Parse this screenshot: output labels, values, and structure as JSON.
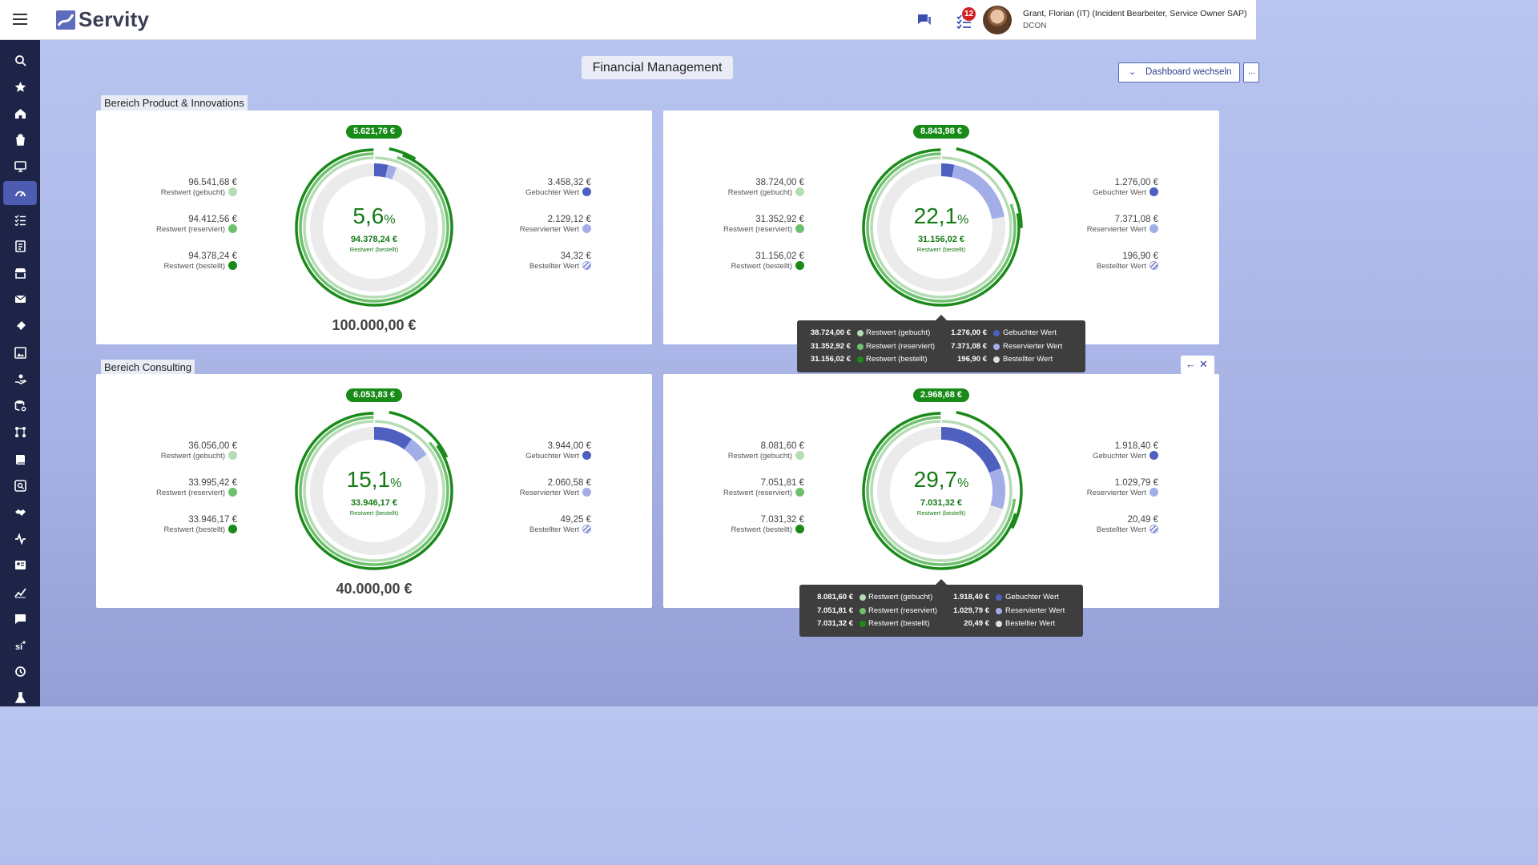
{
  "app": {
    "name": "Servity"
  },
  "header": {
    "notifications_count": "12",
    "user_name": "Grant, Florian (IT) (Incident Bearbeiter, Service Owner SAP)",
    "user_org": "DCON"
  },
  "page": {
    "title": "Financial Management",
    "dashboard_button": "Dashboard wechseln",
    "more_button": "..."
  },
  "colors": {
    "green_dark": "#1a8a1a",
    "green_mid": "#6ec06e",
    "green_light": "#b5dcb5",
    "blue_dark": "#4d5fbf",
    "blue_light": "#a3aee8",
    "track": "#ebebeb"
  },
  "legend_labels": {
    "restwert_gebucht": "Restwert (gebucht)",
    "restwert_reserviert": "Restwert (reserviert)",
    "restwert_bestellt": "Restwert (bestellt)",
    "gebuchter_wert": "Gebuchter Wert",
    "reservierter_wert": "Reservierter Wert",
    "bestellter_wert": "Bestellter Wert"
  },
  "sections": [
    {
      "label": "Bereich Product & Innovations"
    },
    {
      "label": "Bereich Consulting"
    }
  ],
  "cards": [
    {
      "total": "5.621,76 €",
      "percent": "5,6",
      "percent_unit": "%",
      "center_value": "94.378,24 €",
      "center_label": "Restwert (bestellt)",
      "budget": "100.000,00 €",
      "left": [
        "96.541,68 €",
        "94.412,56 €",
        "94.378,24 €"
      ],
      "right": [
        "3.458,32 €",
        "2.129,12 €",
        "34,32 €"
      ]
    },
    {
      "total": "8.843,98 €",
      "percent": "22,1",
      "percent_unit": "%",
      "center_value": "31.156,02 €",
      "center_label": "Restwert (bestellt)",
      "budget": "",
      "left": [
        "38.724,00 €",
        "31.352,92 €",
        "31.156,02 €"
      ],
      "right": [
        "1.276,00 €",
        "7.371,08 €",
        "196,90 €"
      ]
    },
    {
      "total": "6.053,83 €",
      "percent": "15,1",
      "percent_unit": "%",
      "center_value": "33.946,17 €",
      "center_label": "Restwert (bestellt)",
      "budget": "40.000,00 €",
      "left": [
        "36.056,00 €",
        "33.995,42 €",
        "33.946,17 €"
      ],
      "right": [
        "3.944,00 €",
        "2.060,58 €",
        "49,25 €"
      ]
    },
    {
      "total": "2.968,68 €",
      "percent": "29,7",
      "percent_unit": "%",
      "center_value": "7.031,32 €",
      "center_label": "Restwert (bestellt)",
      "budget": "",
      "left": [
        "8.081,60 €",
        "7.051,81 €",
        "7.031,32 €"
      ],
      "right": [
        "1.918,40 €",
        "1.029,79 €",
        "20,49 €"
      ]
    }
  ],
  "tooltips": [
    {
      "left_values": [
        "38.724,00 €",
        "31.352,92 €",
        "31.156,02 €"
      ],
      "left_labels": [
        "Restwert (gebucht)",
        "Restwert (reserviert)",
        "Restwert (bestellt)"
      ],
      "right_values": [
        "1.276,00 €",
        "7.371,08 €",
        "196,90 €"
      ],
      "right_labels": [
        "Gebuchter Wert",
        "Reservierter Wert",
        "Bestellter Wert"
      ]
    },
    {
      "left_values": [
        "8.081,60 €",
        "7.051,81 €",
        "7.031,32 €"
      ],
      "left_labels": [
        "Restwert (gebucht)",
        "Restwert (reserviert)",
        "Restwert (bestellt)"
      ],
      "right_values": [
        "1.918,40 €",
        "1.029,79 €",
        "20,49 €"
      ],
      "right_labels": [
        "Gebuchter Wert",
        "Reservierter Wert",
        "Bestellter Wert"
      ]
    }
  ],
  "sidebar": {
    "items": [
      {
        "icon": "search-icon"
      },
      {
        "icon": "star-icon"
      },
      {
        "icon": "home-icon"
      },
      {
        "icon": "shopping-bag-icon"
      },
      {
        "icon": "monitor-icon"
      },
      {
        "icon": "dashboard-gauge-icon"
      },
      {
        "icon": "task-list-icon"
      },
      {
        "icon": "document-list-icon"
      },
      {
        "icon": "store-icon"
      },
      {
        "icon": "mail-icon"
      },
      {
        "icon": "ticket-icon"
      },
      {
        "icon": "image-report-icon"
      },
      {
        "icon": "hand-service-icon"
      },
      {
        "icon": "database-settings-icon"
      },
      {
        "icon": "workflow-icon"
      },
      {
        "icon": "book-icon"
      },
      {
        "icon": "search-document-icon"
      },
      {
        "icon": "handshake-icon"
      },
      {
        "icon": "activity-icon"
      },
      {
        "icon": "contact-card-icon"
      },
      {
        "icon": "line-chart-icon"
      },
      {
        "icon": "chat-icon"
      },
      {
        "icon": "si-ai-icon"
      },
      {
        "icon": "history-icon"
      },
      {
        "icon": "lab-flask-icon"
      }
    ],
    "active_index": 5
  }
}
